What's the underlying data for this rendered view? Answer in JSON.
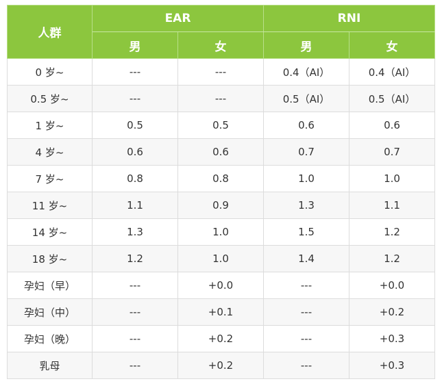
{
  "table": {
    "header": {
      "group_label": "人群",
      "ear_label": "EAR",
      "rni_label": "RNI",
      "sub": [
        "男",
        "女",
        "男",
        "女"
      ]
    },
    "rows": [
      [
        "0 岁~",
        "---",
        "---",
        "0.4（AI）",
        "0.4（AI）"
      ],
      [
        "0.5 岁~",
        "---",
        "---",
        "0.5（AI）",
        "0.5（AI）"
      ],
      [
        "1 岁~",
        "0.5",
        "0.5",
        "0.6",
        "0.6"
      ],
      [
        "4 岁~",
        "0.6",
        "0.6",
        "0.7",
        "0.7"
      ],
      [
        "7 岁~",
        "0.8",
        "0.8",
        "1.0",
        "1.0"
      ],
      [
        "11 岁~",
        "1.1",
        "0.9",
        "1.3",
        "1.1"
      ],
      [
        "14 岁~",
        "1.3",
        "1.0",
        "1.5",
        "1.2"
      ],
      [
        "18 岁~",
        "1.2",
        "1.0",
        "1.4",
        "1.2"
      ],
      [
        "孕妇（早）",
        "---",
        "+0.0",
        "---",
        "+0.0"
      ],
      [
        "孕妇（中）",
        "---",
        "+0.1",
        "---",
        "+0.2"
      ],
      [
        "孕妇（晚）",
        "---",
        "+0.2",
        "---",
        "+0.3"
      ],
      [
        "乳母",
        "---",
        "+0.2",
        "---",
        "+0.3"
      ]
    ]
  },
  "colors": {
    "header_green": "#8cc63e",
    "header_text": "#ffffff",
    "body_text": "#333333",
    "alt_row": "#f7f7f7"
  }
}
